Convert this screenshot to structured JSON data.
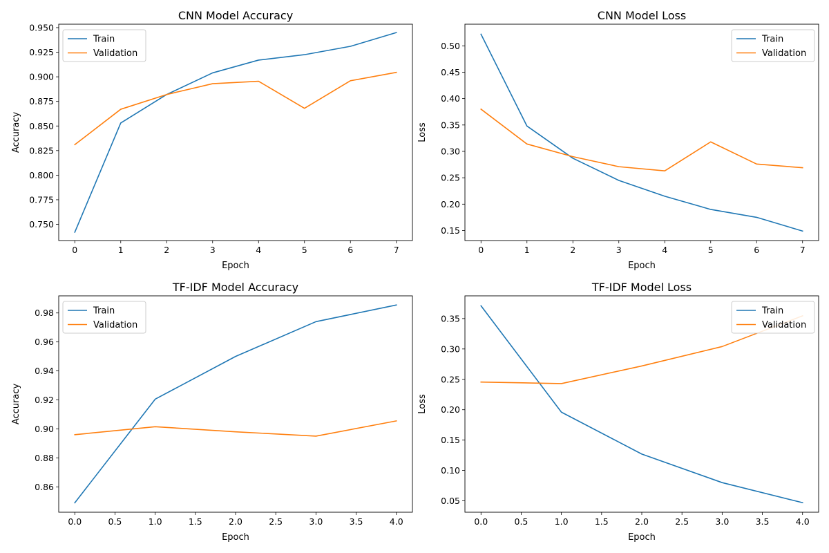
{
  "colors": {
    "train": "#1f77b4",
    "validation": "#ff7f0e"
  },
  "chart_data": [
    {
      "type": "line",
      "title": "CNN Model Accuracy",
      "xlabel": "Epoch",
      "ylabel": "Accuracy",
      "x": [
        0,
        1,
        2,
        3,
        4,
        5,
        6,
        7
      ],
      "xlim": [
        -0.35,
        7.35
      ],
      "ylim": [
        0.7335,
        0.9535
      ],
      "xticks": [
        "0",
        "1",
        "2",
        "3",
        "4",
        "5",
        "6",
        "7"
      ],
      "yticks": [
        "0.750",
        "0.775",
        "0.800",
        "0.825",
        "0.850",
        "0.875",
        "0.900",
        "0.925",
        "0.950"
      ],
      "grid": false,
      "legend": "upper left",
      "series": [
        {
          "name": "Train",
          "color": "#1f77b4",
          "values": [
            0.742,
            0.853,
            0.882,
            0.904,
            0.917,
            0.9225,
            0.931,
            0.945
          ]
        },
        {
          "name": "Validation",
          "color": "#ff7f0e",
          "values": [
            0.831,
            0.867,
            0.882,
            0.893,
            0.8955,
            0.868,
            0.896,
            0.9045
          ]
        }
      ]
    },
    {
      "type": "line",
      "title": "CNN Model Loss",
      "xlabel": "Epoch",
      "ylabel": "Loss",
      "x": [
        0,
        1,
        2,
        3,
        4,
        5,
        6,
        7
      ],
      "xlim": [
        -0.35,
        7.35
      ],
      "ylim": [
        0.131,
        0.541
      ],
      "xticks": [
        "0",
        "1",
        "2",
        "3",
        "4",
        "5",
        "6",
        "7"
      ],
      "yticks": [
        "0.15",
        "0.20",
        "0.25",
        "0.30",
        "0.35",
        "0.40",
        "0.45",
        "0.50"
      ],
      "grid": false,
      "legend": "upper right",
      "series": [
        {
          "name": "Train",
          "color": "#1f77b4",
          "values": [
            0.522,
            0.348,
            0.287,
            0.245,
            0.215,
            0.19,
            0.175,
            0.149
          ]
        },
        {
          "name": "Validation",
          "color": "#ff7f0e",
          "values": [
            0.38,
            0.314,
            0.29,
            0.271,
            0.263,
            0.318,
            0.276,
            0.269
          ]
        }
      ]
    },
    {
      "type": "line",
      "title": "TF-IDF Model Accuracy",
      "xlabel": "Epoch",
      "ylabel": "Accuracy",
      "x": [
        0,
        1,
        2,
        3,
        4
      ],
      "xlim": [
        -0.2,
        4.2
      ],
      "ylim": [
        0.8425,
        0.9918
      ],
      "xticks": [
        "0.0",
        "0.5",
        "1.0",
        "1.5",
        "2.0",
        "2.5",
        "3.0",
        "3.5",
        "4.0"
      ],
      "yticks": [
        "0.86",
        "0.88",
        "0.90",
        "0.92",
        "0.94",
        "0.96",
        "0.98"
      ],
      "grid": false,
      "legend": "upper left",
      "series": [
        {
          "name": "Train",
          "color": "#1f77b4",
          "values": [
            0.849,
            0.9205,
            0.95,
            0.974,
            0.9855
          ]
        },
        {
          "name": "Validation",
          "color": "#ff7f0e",
          "values": [
            0.896,
            0.9015,
            0.898,
            0.895,
            0.9055
          ]
        }
      ]
    },
    {
      "type": "line",
      "title": "TF-IDF Model Loss",
      "xlabel": "Epoch",
      "ylabel": "Loss",
      "x": [
        0,
        1,
        2,
        3,
        4
      ],
      "xlim": [
        -0.2,
        4.2
      ],
      "ylim": [
        0.0313,
        0.3874
      ],
      "xticks": [
        "0.0",
        "0.5",
        "1.0",
        "1.5",
        "2.0",
        "2.5",
        "3.0",
        "3.5",
        "4.0"
      ],
      "yticks": [
        "0.05",
        "0.10",
        "0.15",
        "0.20",
        "0.25",
        "0.30",
        "0.35"
      ],
      "grid": false,
      "legend": "upper right",
      "series": [
        {
          "name": "Train",
          "color": "#1f77b4",
          "values": [
            0.371,
            0.196,
            0.127,
            0.08,
            0.047
          ]
        },
        {
          "name": "Validation",
          "color": "#ff7f0e",
          "values": [
            0.2455,
            0.243,
            0.272,
            0.304,
            0.3545
          ]
        }
      ]
    }
  ]
}
